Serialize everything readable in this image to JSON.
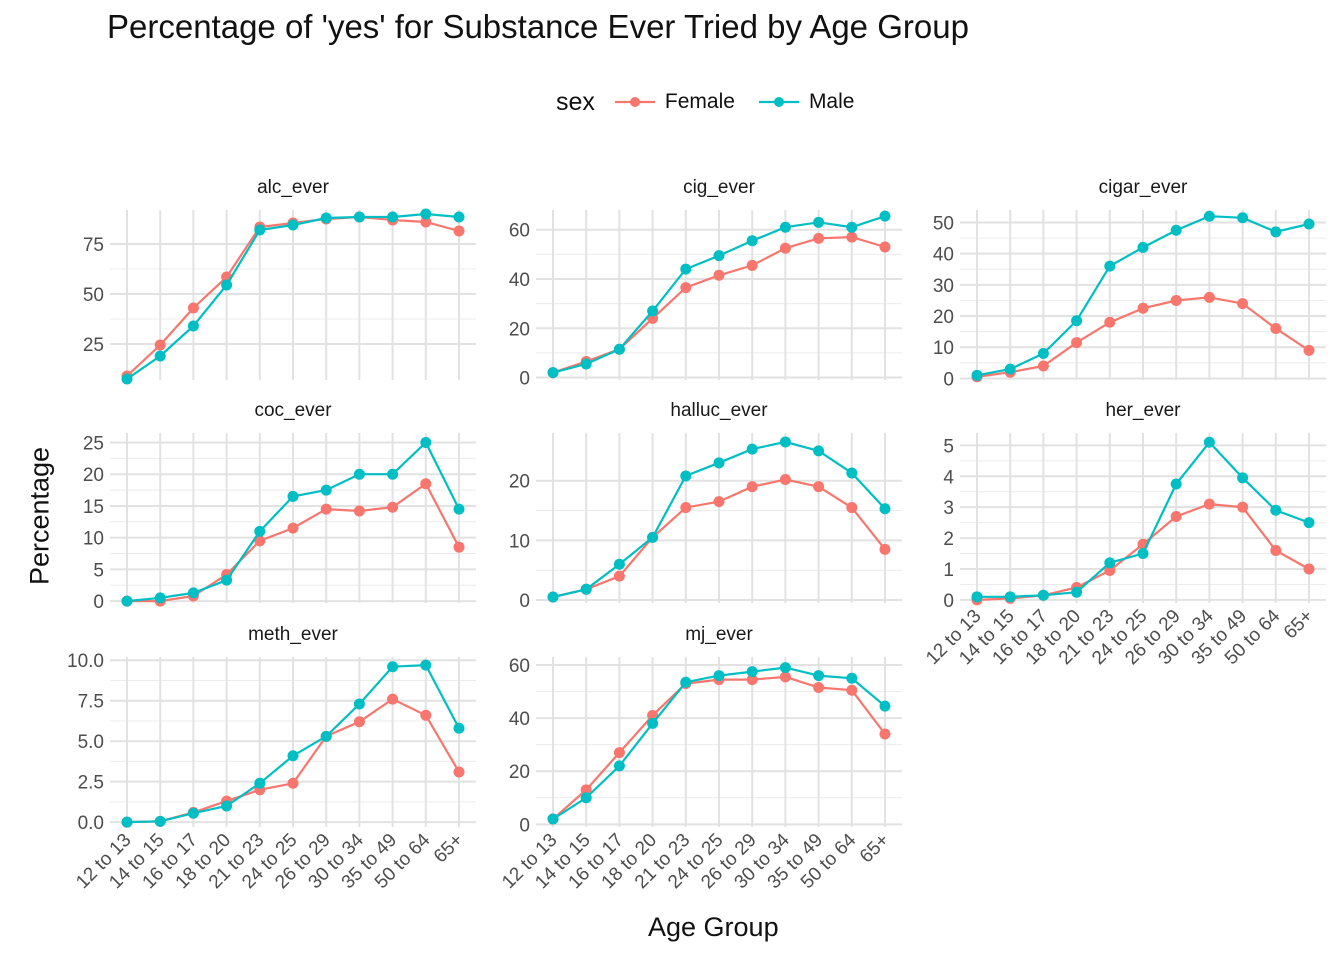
{
  "title": "Percentage of 'yes' for Substance Ever Tried by Age Group",
  "legend": {
    "title": "sex",
    "items": [
      {
        "label": "Female",
        "color": "#F8766D"
      },
      {
        "label": "Male",
        "color": "#00BFC4"
      }
    ]
  },
  "xlabel": "Age Group",
  "ylabel": "Percentage",
  "chart_data": {
    "type": "line",
    "categories": [
      "12 to 13",
      "14 to 15",
      "16 to 17",
      "18 to 20",
      "21 to 23",
      "24 to 25",
      "26 to 29",
      "30 to 34",
      "35 to 49",
      "50 to 64",
      "65+"
    ],
    "legend_position": "top",
    "grid": true,
    "panels": [
      {
        "name": "alc_ever",
        "ylim": [
          7,
          92
        ],
        "yticks": [
          25,
          50,
          75
        ],
        "tick_labels": [
          "25",
          "50",
          "75"
        ],
        "series": [
          {
            "name": "Female",
            "values": [
              9,
              24.5,
              43,
              58.5,
              83.5,
              85.5,
              87.5,
              88.5,
              87,
              86,
              81.5
            ]
          },
          {
            "name": "Male",
            "values": [
              7.5,
              19,
              34,
              54.5,
              82,
              84.5,
              88,
              88.5,
              88.5,
              90,
              88.5
            ]
          }
        ]
      },
      {
        "name": "cig_ever",
        "ylim": [
          -1,
          68
        ],
        "yticks": [
          0,
          20,
          40,
          60
        ],
        "tick_labels": [
          "0",
          "20",
          "40",
          "60"
        ],
        "series": [
          {
            "name": "Female",
            "values": [
              2,
              6.5,
              11.5,
              24,
              36.5,
              41.5,
              45.5,
              52.5,
              56.5,
              57,
              53
            ]
          },
          {
            "name": "Male",
            "values": [
              2,
              5.5,
              11.5,
              27,
              44,
              49.5,
              55.5,
              61,
              63,
              61,
              65.5
            ]
          }
        ]
      },
      {
        "name": "cigar_ever",
        "ylim": [
          -0.5,
          54
        ],
        "yticks": [
          0,
          10,
          20,
          30,
          40,
          50
        ],
        "tick_labels": [
          "0",
          "10",
          "20",
          "30",
          "40",
          "50"
        ],
        "series": [
          {
            "name": "Female",
            "values": [
              0.5,
              2,
              4,
              11.5,
              18,
              22.5,
              25,
              26,
              24,
              16,
              9
            ]
          },
          {
            "name": "Male",
            "values": [
              1,
              3,
              8,
              18.5,
              36,
              42,
              47.5,
              52,
              51.5,
              47,
              49.5
            ]
          }
        ]
      },
      {
        "name": "coc_ever",
        "ylim": [
          -0.3,
          26.5
        ],
        "yticks": [
          0,
          5,
          10,
          15,
          20,
          25
        ],
        "tick_labels": [
          "0",
          "5",
          "10",
          "15",
          "20",
          "25"
        ],
        "series": [
          {
            "name": "Female",
            "values": [
              0,
              0,
              0.8,
              4.2,
              9.5,
              11.5,
              14.5,
              14.2,
              14.8,
              18.5,
              8.5
            ]
          },
          {
            "name": "Male",
            "values": [
              0,
              0.5,
              1.3,
              3.3,
              11,
              16.5,
              17.5,
              20,
              20,
              25,
              14.5
            ]
          }
        ]
      },
      {
        "name": "halluc_ever",
        "ylim": [
          -0.5,
          28
        ],
        "yticks": [
          0,
          10,
          20
        ],
        "tick_labels": [
          "0",
          "10",
          "20"
        ],
        "series": [
          {
            "name": "Female",
            "values": [
              0.5,
              1.8,
              4,
              10.5,
              15.5,
              16.5,
              19,
              20.2,
              19,
              15.5,
              8.5
            ]
          },
          {
            "name": "Male",
            "values": [
              0.5,
              1.8,
              6,
              10.5,
              20.8,
              23,
              25.3,
              26.5,
              25,
              21.3,
              15.3
            ]
          }
        ]
      },
      {
        "name": "her_ever",
        "ylim": [
          -0.1,
          5.4
        ],
        "yticks": [
          0,
          1,
          2,
          3,
          4,
          5
        ],
        "tick_labels": [
          "0",
          "1",
          "2",
          "3",
          "4",
          "5"
        ],
        "series": [
          {
            "name": "Female",
            "values": [
              0,
              0.05,
              0.15,
              0.4,
              0.95,
              1.8,
              2.7,
              3.1,
              3.0,
              1.6,
              1.0
            ]
          },
          {
            "name": "Male",
            "values": [
              0.1,
              0.1,
              0.15,
              0.25,
              1.2,
              1.5,
              3.75,
              5.1,
              3.95,
              2.9,
              2.5
            ]
          }
        ]
      },
      {
        "name": "meth_ever",
        "ylim": [
          -0.3,
          10.2
        ],
        "yticks": [
          0,
          2.5,
          5,
          7.5,
          10
        ],
        "tick_labels": [
          "0.0",
          "2.5",
          "5.0",
          "7.5",
          "10.0"
        ],
        "series": [
          {
            "name": "Female",
            "values": [
              0,
              0.05,
              0.6,
              1.3,
              2.0,
              2.4,
              5.3,
              6.2,
              7.6,
              6.6,
              3.1
            ]
          },
          {
            "name": "Male",
            "values": [
              0,
              0.05,
              0.55,
              1.0,
              2.4,
              4.1,
              5.3,
              7.3,
              9.6,
              9.7,
              5.8
            ]
          }
        ]
      },
      {
        "name": "mj_ever",
        "ylim": [
          -1,
          63
        ],
        "yticks": [
          0,
          20,
          40,
          60
        ],
        "tick_labels": [
          "0",
          "20",
          "40",
          "60"
        ],
        "series": [
          {
            "name": "Female",
            "values": [
              2,
              13,
              27,
              41,
              53,
              54.5,
              54.5,
              55.5,
              51.5,
              50.5,
              34
            ]
          },
          {
            "name": "Male",
            "values": [
              2,
              10,
              22,
              38,
              53.5,
              56,
              57.5,
              59,
              56,
              55,
              44.5
            ]
          }
        ]
      }
    ]
  }
}
